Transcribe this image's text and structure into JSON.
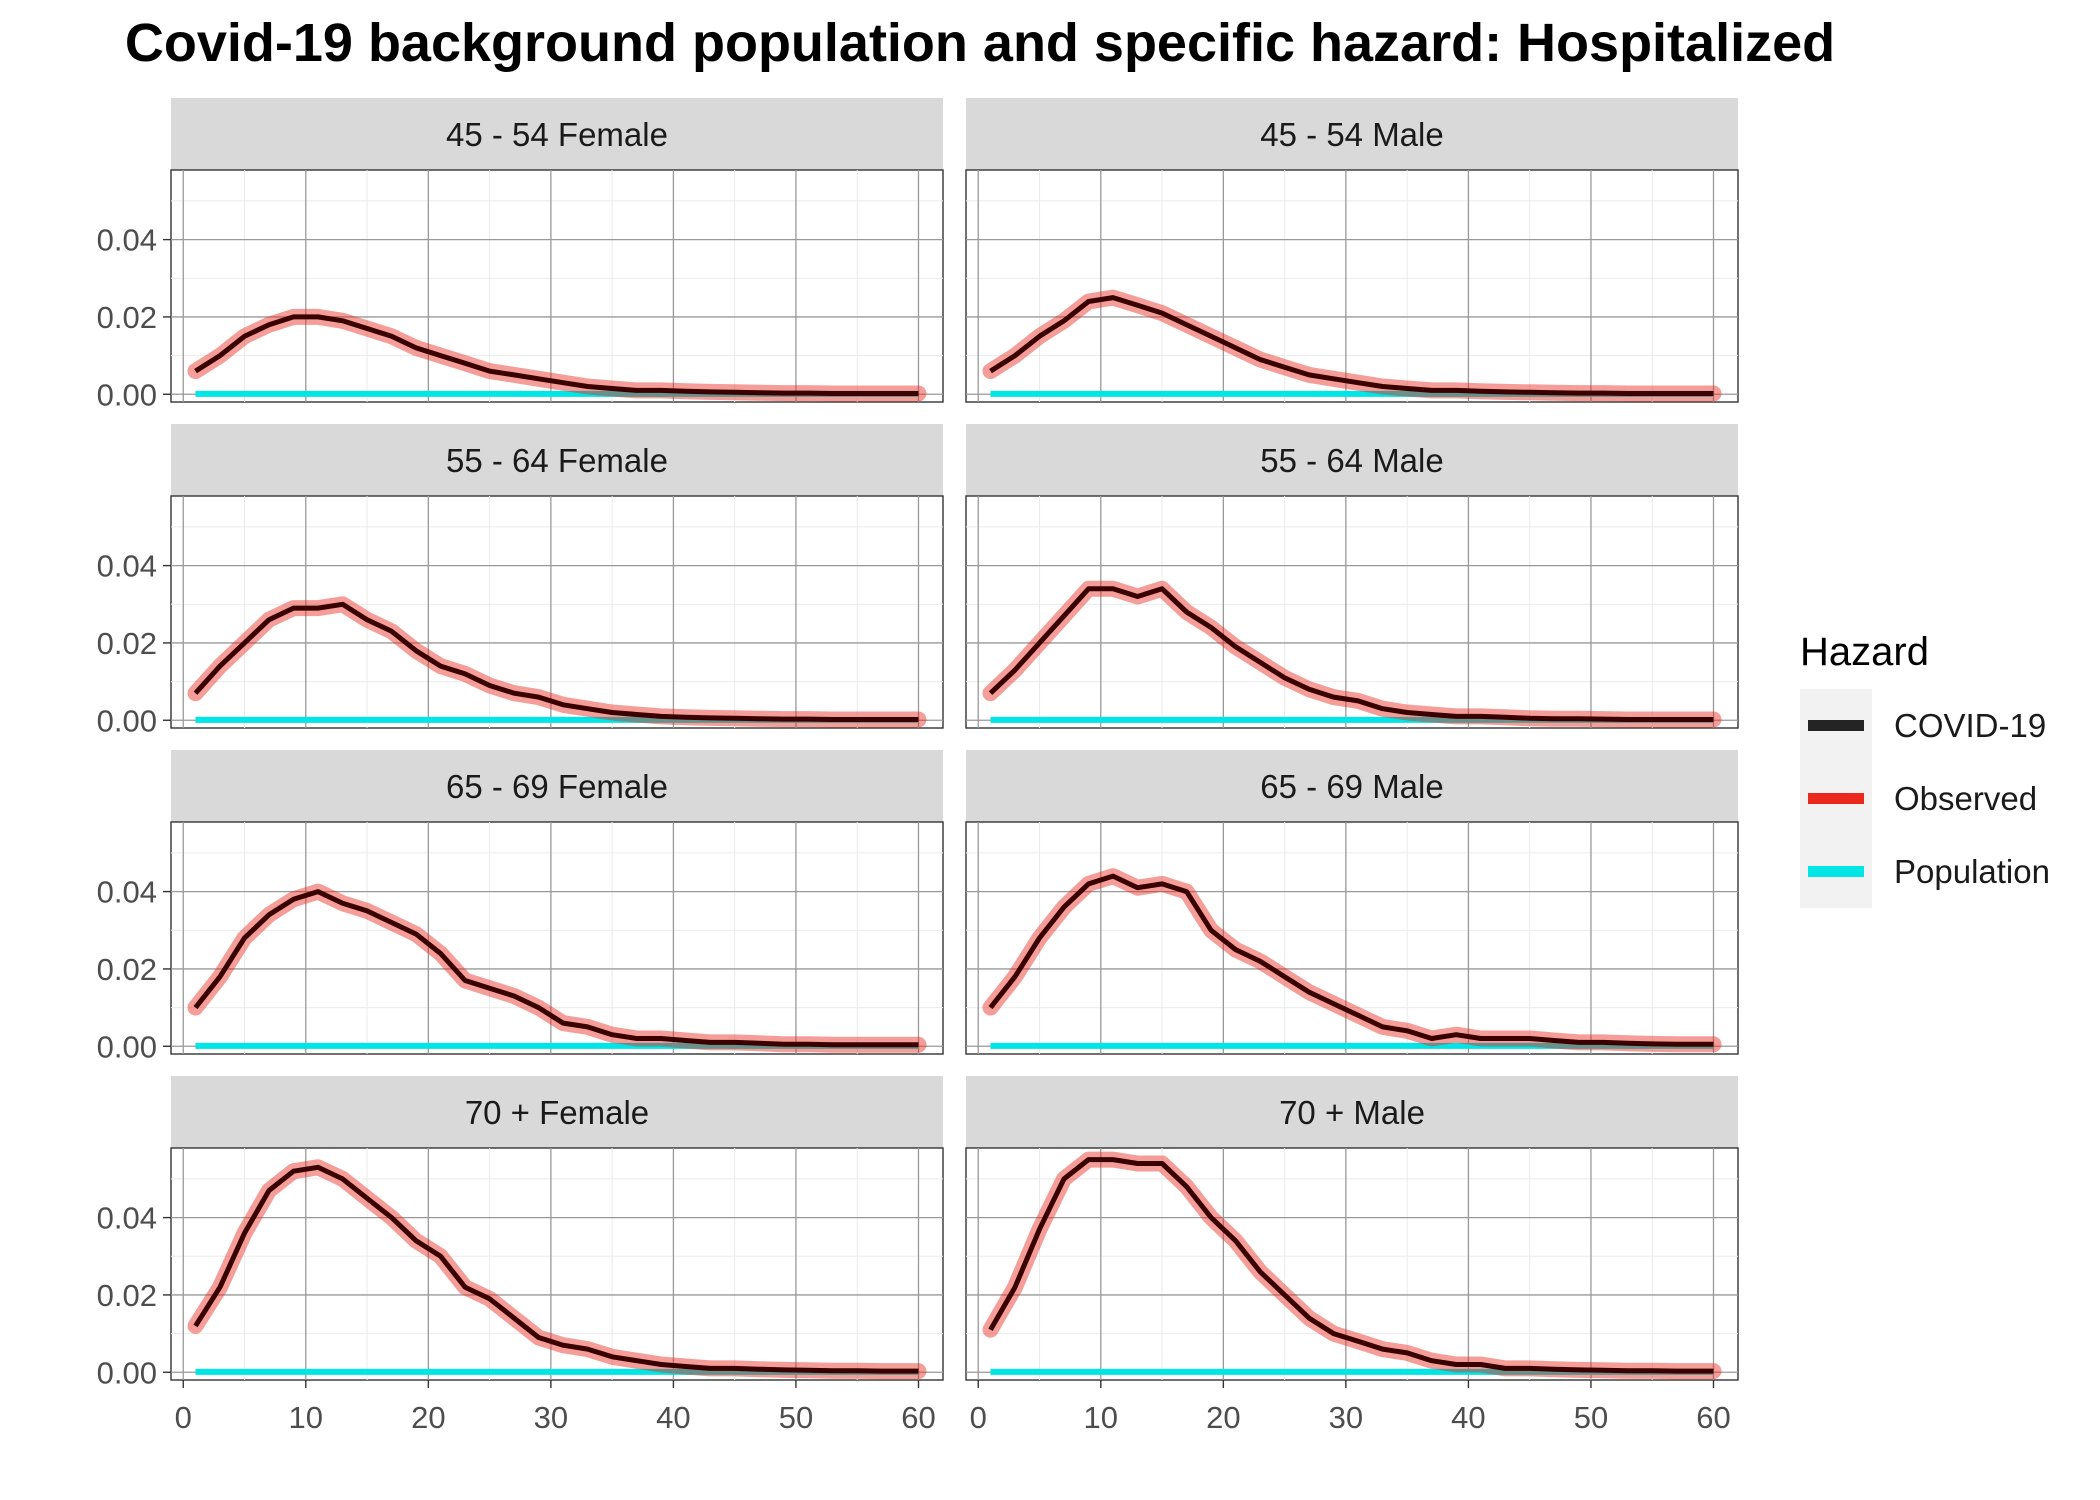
{
  "chart_data": {
    "type": "line",
    "title": "Covid-19 background population and specific hazard: Hospitalized",
    "xlabel": "",
    "ylabel": "",
    "xlim": [
      -1,
      62
    ],
    "ylim": [
      -0.002,
      0.058
    ],
    "x_ticks": [
      0,
      10,
      20,
      30,
      40,
      50,
      60
    ],
    "y_ticks": [
      0.0,
      0.02,
      0.04
    ],
    "y_tick_labels": [
      "0.00",
      "0.02",
      "0.04"
    ],
    "grid": true,
    "legend": {
      "title": "Hazard",
      "placement": "right",
      "entries": [
        {
          "name": "COVID-19",
          "color": "#000000"
        },
        {
          "name": "Observed",
          "color": "#e8291c"
        },
        {
          "name": "Population",
          "color": "#00e5e5"
        }
      ]
    },
    "x": [
      1,
      3,
      5,
      7,
      9,
      11,
      13,
      15,
      17,
      19,
      21,
      23,
      25,
      27,
      29,
      31,
      33,
      35,
      37,
      39,
      41,
      43,
      45,
      47,
      49,
      51,
      53,
      55,
      57,
      59,
      60
    ],
    "panels": [
      {
        "label": "45 - 54 Female",
        "series": [
          {
            "name": "COVID-19",
            "values": [
              0.006,
              0.01,
              0.015,
              0.018,
              0.02,
              0.02,
              0.019,
              0.017,
              0.015,
              0.012,
              0.01,
              0.008,
              0.006,
              0.005,
              0.004,
              0.003,
              0.002,
              0.0015,
              0.001,
              0.001,
              0.0008,
              0.0006,
              0.0005,
              0.0004,
              0.0003,
              0.0003,
              0.0002,
              0.0002,
              0.0002,
              0.0002,
              0.0002
            ]
          },
          {
            "name": "Population",
            "values": [
              0.0001,
              0.0001,
              0.0001,
              0.0001,
              0.0001,
              0.0001,
              0.0001,
              0.0001,
              0.0001,
              0.0001,
              0.0001,
              0.0001,
              0.0001,
              0.0001,
              0.0001,
              0.0001,
              0.0001,
              0.0001,
              0.0001,
              0.0001,
              0.0001,
              0.0001,
              0.0001,
              0.0001,
              0.0001,
              0.0001,
              0.0001,
              0.0001,
              0.0001,
              0.0001,
              0.0001
            ]
          }
        ]
      },
      {
        "label": "45 - 54 Male",
        "series": [
          {
            "name": "COVID-19",
            "values": [
              0.006,
              0.01,
              0.015,
              0.019,
              0.024,
              0.025,
              0.023,
              0.021,
              0.018,
              0.015,
              0.012,
              0.009,
              0.007,
              0.005,
              0.004,
              0.003,
              0.002,
              0.0015,
              0.001,
              0.001,
              0.0008,
              0.0006,
              0.0005,
              0.0004,
              0.0003,
              0.0003,
              0.0002,
              0.0002,
              0.0002,
              0.0002,
              0.0002
            ]
          },
          {
            "name": "Population",
            "values": [
              0.0001,
              0.0001,
              0.0001,
              0.0001,
              0.0001,
              0.0001,
              0.0001,
              0.0001,
              0.0001,
              0.0001,
              0.0001,
              0.0001,
              0.0001,
              0.0001,
              0.0001,
              0.0001,
              0.0001,
              0.0001,
              0.0001,
              0.0001,
              0.0001,
              0.0001,
              0.0001,
              0.0001,
              0.0001,
              0.0001,
              0.0001,
              0.0001,
              0.0001,
              0.0001,
              0.0001
            ]
          }
        ]
      },
      {
        "label": "55 - 64 Female",
        "series": [
          {
            "name": "COVID-19",
            "values": [
              0.007,
              0.014,
              0.02,
              0.026,
              0.029,
              0.029,
              0.03,
              0.026,
              0.023,
              0.018,
              0.014,
              0.012,
              0.009,
              0.007,
              0.006,
              0.004,
              0.003,
              0.002,
              0.0015,
              0.001,
              0.0008,
              0.0006,
              0.0005,
              0.0004,
              0.0003,
              0.0003,
              0.0002,
              0.0002,
              0.0002,
              0.0002,
              0.0002
            ]
          },
          {
            "name": "Population",
            "values": [
              0.0001,
              0.0001,
              0.0001,
              0.0001,
              0.0001,
              0.0001,
              0.0001,
              0.0001,
              0.0001,
              0.0001,
              0.0001,
              0.0001,
              0.0001,
              0.0001,
              0.0001,
              0.0001,
              0.0001,
              0.0001,
              0.0001,
              0.0001,
              0.0001,
              0.0001,
              0.0001,
              0.0001,
              0.0001,
              0.0001,
              0.0001,
              0.0001,
              0.0001,
              0.0001,
              0.0001
            ]
          }
        ]
      },
      {
        "label": "55 - 64 Male",
        "series": [
          {
            "name": "COVID-19",
            "values": [
              0.007,
              0.013,
              0.02,
              0.027,
              0.034,
              0.034,
              0.032,
              0.034,
              0.028,
              0.024,
              0.019,
              0.015,
              0.011,
              0.008,
              0.006,
              0.005,
              0.003,
              0.002,
              0.0015,
              0.001,
              0.001,
              0.0008,
              0.0005,
              0.0004,
              0.0004,
              0.0003,
              0.0002,
              0.0002,
              0.0002,
              0.0002,
              0.0002
            ]
          },
          {
            "name": "Population",
            "values": [
              0.0001,
              0.0001,
              0.0001,
              0.0001,
              0.0001,
              0.0001,
              0.0001,
              0.0001,
              0.0001,
              0.0001,
              0.0001,
              0.0001,
              0.0001,
              0.0001,
              0.0001,
              0.0001,
              0.0001,
              0.0001,
              0.0001,
              0.0001,
              0.0001,
              0.0001,
              0.0001,
              0.0001,
              0.0001,
              0.0001,
              0.0001,
              0.0001,
              0.0001,
              0.0001,
              0.0001
            ]
          }
        ]
      },
      {
        "label": "65 - 69 Female",
        "series": [
          {
            "name": "COVID-19",
            "values": [
              0.01,
              0.018,
              0.028,
              0.034,
              0.038,
              0.04,
              0.037,
              0.035,
              0.032,
              0.029,
              0.024,
              0.017,
              0.015,
              0.013,
              0.01,
              0.006,
              0.005,
              0.003,
              0.002,
              0.002,
              0.0015,
              0.001,
              0.001,
              0.0008,
              0.0005,
              0.0005,
              0.0004,
              0.0004,
              0.0004,
              0.0004,
              0.0004
            ]
          },
          {
            "name": "Population",
            "values": [
              0.0001,
              0.0001,
              0.0001,
              0.0001,
              0.0001,
              0.0001,
              0.0001,
              0.0001,
              0.0001,
              0.0001,
              0.0001,
              0.0001,
              0.0001,
              0.0001,
              0.0001,
              0.0001,
              0.0001,
              0.0001,
              0.0001,
              0.0001,
              0.0001,
              0.0001,
              0.0001,
              0.0001,
              0.0001,
              0.0001,
              0.0001,
              0.0001,
              0.0001,
              0.0001,
              0.0001
            ]
          }
        ]
      },
      {
        "label": "65 - 69 Male",
        "series": [
          {
            "name": "COVID-19",
            "values": [
              0.01,
              0.018,
              0.028,
              0.036,
              0.042,
              0.044,
              0.041,
              0.042,
              0.04,
              0.03,
              0.025,
              0.022,
              0.018,
              0.014,
              0.011,
              0.008,
              0.005,
              0.004,
              0.002,
              0.003,
              0.002,
              0.002,
              0.002,
              0.0015,
              0.001,
              0.001,
              0.0008,
              0.0006,
              0.0005,
              0.0005,
              0.0005
            ]
          },
          {
            "name": "Population",
            "values": [
              0.0001,
              0.0001,
              0.0001,
              0.0001,
              0.0001,
              0.0001,
              0.0001,
              0.0001,
              0.0001,
              0.0001,
              0.0001,
              0.0001,
              0.0001,
              0.0001,
              0.0001,
              0.0001,
              0.0001,
              0.0001,
              0.0001,
              0.0001,
              0.0001,
              0.0001,
              0.0001,
              0.0001,
              0.0001,
              0.0001,
              0.0001,
              0.0001,
              0.0001,
              0.0001,
              0.0001
            ]
          }
        ]
      },
      {
        "label": "70 + Female",
        "series": [
          {
            "name": "COVID-19",
            "values": [
              0.012,
              0.022,
              0.036,
              0.047,
              0.052,
              0.053,
              0.05,
              0.045,
              0.04,
              0.034,
              0.03,
              0.022,
              0.019,
              0.014,
              0.009,
              0.007,
              0.006,
              0.004,
              0.003,
              0.002,
              0.0015,
              0.001,
              0.001,
              0.0008,
              0.0006,
              0.0005,
              0.0004,
              0.0004,
              0.0003,
              0.0003,
              0.0003
            ]
          },
          {
            "name": "Population",
            "values": [
              0.0001,
              0.0001,
              0.0001,
              0.0001,
              0.0001,
              0.0001,
              0.0001,
              0.0001,
              0.0001,
              0.0001,
              0.0001,
              0.0001,
              0.0001,
              0.0001,
              0.0001,
              0.0001,
              0.0001,
              0.0001,
              0.0001,
              0.0001,
              0.0001,
              0.0001,
              0.0001,
              0.0001,
              0.0001,
              0.0001,
              0.0001,
              0.0001,
              0.0001,
              0.0001,
              0.0001
            ]
          }
        ]
      },
      {
        "label": "70 + Male",
        "series": [
          {
            "name": "COVID-19",
            "values": [
              0.011,
              0.022,
              0.037,
              0.05,
              0.055,
              0.055,
              0.054,
              0.054,
              0.048,
              0.04,
              0.034,
              0.026,
              0.02,
              0.014,
              0.01,
              0.008,
              0.006,
              0.005,
              0.003,
              0.002,
              0.002,
              0.001,
              0.001,
              0.0008,
              0.0006,
              0.0005,
              0.0004,
              0.0004,
              0.0003,
              0.0003,
              0.0003
            ]
          },
          {
            "name": "Population",
            "values": [
              0.0001,
              0.0001,
              0.0001,
              0.0001,
              0.0001,
              0.0001,
              0.0001,
              0.0001,
              0.0001,
              0.0001,
              0.0001,
              0.0001,
              0.0001,
              0.0001,
              0.0001,
              0.0001,
              0.0001,
              0.0001,
              0.0001,
              0.0001,
              0.0001,
              0.0001,
              0.0001,
              0.0001,
              0.0001,
              0.0001,
              0.0001,
              0.0001,
              0.0001,
              0.0001,
              0.0001
            ]
          }
        ]
      }
    ]
  }
}
